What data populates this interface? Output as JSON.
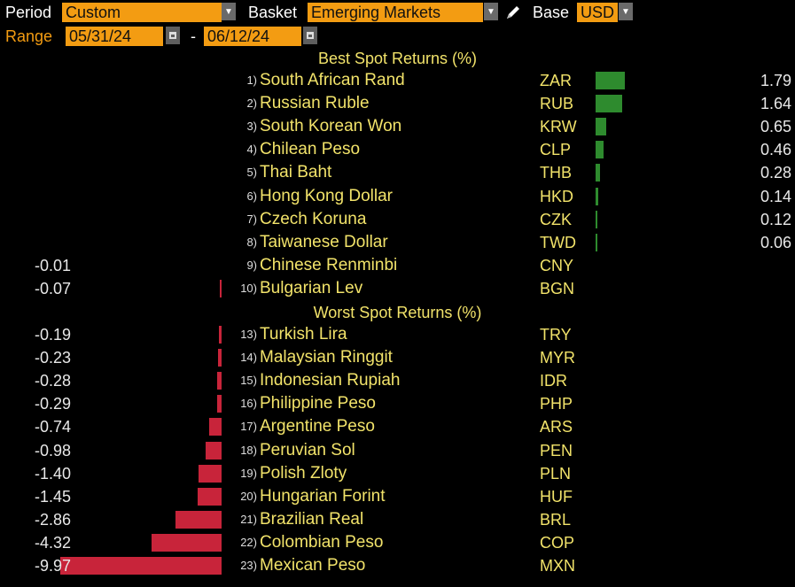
{
  "controls": {
    "period_label": "Period",
    "period_value": "Custom",
    "basket_label": "Basket",
    "basket_value": "Emerging Markets",
    "base_label": "Base",
    "base_value": "USD",
    "range_label": "Range",
    "range_start": "05/31/24",
    "range_sep": "-",
    "range_end": "06/12/24"
  },
  "best_title": "Best Spot Returns (%)",
  "worst_title": "Worst Spot Returns (%)",
  "colors": {
    "positive": "#2e8b2e",
    "negative": "#c8243a",
    "field": "#f39c12",
    "text": "#f2e36a"
  },
  "best": [
    {
      "rank": "1)",
      "name": "South African Rand",
      "code": "ZAR",
      "value": 1.79,
      "display": "1.79"
    },
    {
      "rank": "2)",
      "name": "Russian Ruble",
      "code": "RUB",
      "value": 1.64,
      "display": "1.64"
    },
    {
      "rank": "3)",
      "name": "South Korean Won",
      "code": "KRW",
      "value": 0.65,
      "display": "0.65"
    },
    {
      "rank": "4)",
      "name": "Chilean Peso",
      "code": "CLP",
      "value": 0.46,
      "display": "0.46"
    },
    {
      "rank": "5)",
      "name": "Thai Baht",
      "code": "THB",
      "value": 0.28,
      "display": "0.28"
    },
    {
      "rank": "6)",
      "name": "Hong Kong Dollar",
      "code": "HKD",
      "value": 0.14,
      "display": "0.14"
    },
    {
      "rank": "7)",
      "name": "Czech Koruna",
      "code": "CZK",
      "value": 0.12,
      "display": "0.12"
    },
    {
      "rank": "8)",
      "name": "Taiwanese Dollar",
      "code": "TWD",
      "value": 0.06,
      "display": "0.06"
    },
    {
      "rank": "9)",
      "name": "Chinese Renminbi",
      "code": "CNY",
      "value": -0.01,
      "display": "-0.01"
    },
    {
      "rank": "10)",
      "name": "Bulgarian Lev",
      "code": "BGN",
      "value": -0.07,
      "display": "-0.07"
    }
  ],
  "worst": [
    {
      "rank": "13)",
      "name": "Turkish Lira",
      "code": "TRY",
      "value": -0.19,
      "display": "-0.19"
    },
    {
      "rank": "14)",
      "name": "Malaysian Ringgit",
      "code": "MYR",
      "value": -0.23,
      "display": "-0.23"
    },
    {
      "rank": "15)",
      "name": "Indonesian Rupiah",
      "code": "IDR",
      "value": -0.28,
      "display": "-0.28"
    },
    {
      "rank": "16)",
      "name": "Philippine Peso",
      "code": "PHP",
      "value": -0.29,
      "display": "-0.29"
    },
    {
      "rank": "17)",
      "name": "Argentine Peso",
      "code": "ARS",
      "value": -0.74,
      "display": "-0.74"
    },
    {
      "rank": "18)",
      "name": "Peruvian Sol",
      "code": "PEN",
      "value": -0.98,
      "display": "-0.98"
    },
    {
      "rank": "19)",
      "name": "Polish Zloty",
      "code": "PLN",
      "value": -1.4,
      "display": "-1.40"
    },
    {
      "rank": "20)",
      "name": "Hungarian Forint",
      "code": "HUF",
      "value": -1.45,
      "display": "-1.45"
    },
    {
      "rank": "21)",
      "name": "Brazilian Real",
      "code": "BRL",
      "value": -2.86,
      "display": "-2.86"
    },
    {
      "rank": "22)",
      "name": "Colombian Peso",
      "code": "COP",
      "value": -4.32,
      "display": "-4.32"
    },
    {
      "rank": "23)",
      "name": "Mexican Peso",
      "code": "MXN",
      "value": -9.97,
      "display": "-9.97"
    }
  ]
}
